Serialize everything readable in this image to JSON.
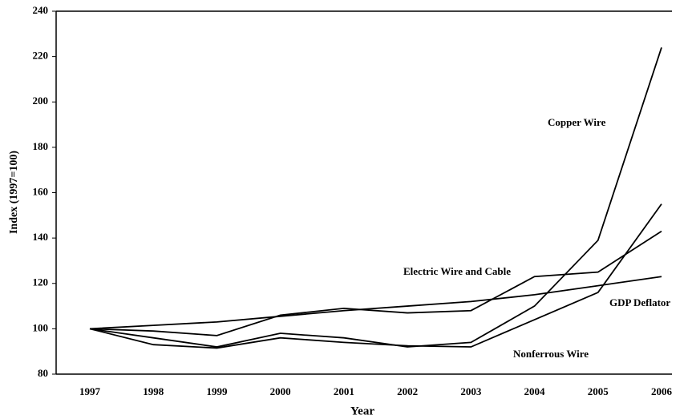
{
  "chart_data": {
    "type": "line",
    "x_label": "Year",
    "y_label": "Index (1997=100)",
    "categories": [
      "1997",
      "1998",
      "1999",
      "2000",
      "2001",
      "2002",
      "2003",
      "2004",
      "2005",
      "2006"
    ],
    "series": [
      {
        "name": "Copper Wire",
        "color": "#000000",
        "values": [
          100,
          96,
          92,
          98,
          96,
          92,
          94,
          110,
          139,
          224
        ]
      },
      {
        "name": "Electric Wire and Cable",
        "color": "#000000",
        "values": [
          100,
          99,
          97,
          106,
          109,
          107,
          108,
          123,
          125,
          143
        ]
      },
      {
        "name": "GDP Deflator",
        "color": "#000000",
        "values": [
          100,
          101.5,
          103,
          105.5,
          108,
          110,
          112,
          115,
          119,
          123
        ]
      },
      {
        "name": "Nonferrous Wire",
        "color": "#000000",
        "values": [
          100,
          93,
          91.5,
          96,
          94,
          92.5,
          92,
          104,
          116,
          155
        ]
      }
    ],
    "ylim": [
      80,
      240
    ],
    "yticks": [
      80,
      100,
      120,
      140,
      160,
      180,
      200,
      220,
      240
    ]
  }
}
